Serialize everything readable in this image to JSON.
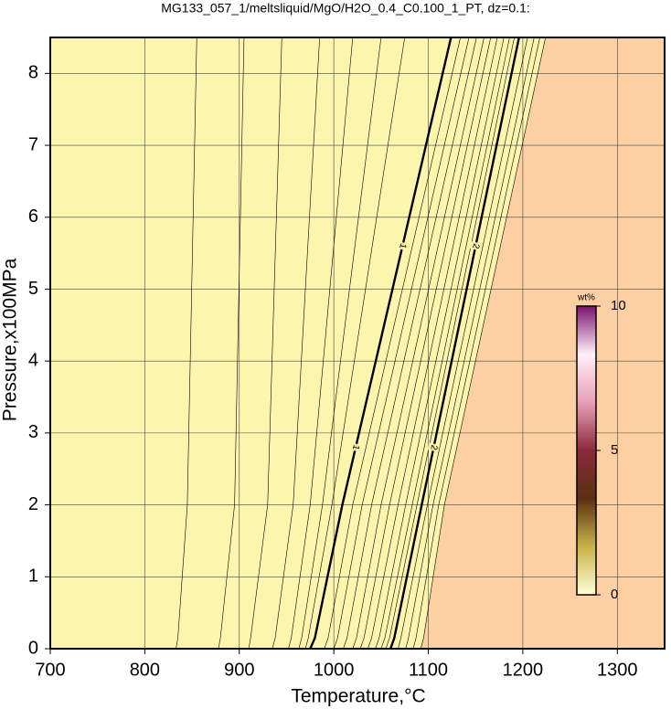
{
  "chart_data": {
    "type": "contour",
    "title": "MG133_057_1/meltsliquid/MgO/H2O_0.4_C0.100_1_PT, dz=0.1:",
    "x_label": "Temperature,°C",
    "y_label": "Pressure,x100MPa",
    "xlim": [
      700,
      1350
    ],
    "ylim": [
      0,
      8.5
    ],
    "xticks": [
      700,
      800,
      900,
      1000,
      1100,
      1200,
      1300
    ],
    "yticks": [
      0,
      1,
      2,
      3,
      4,
      5,
      6,
      7,
      8
    ],
    "grid": true,
    "low_color": "#fcf5ae",
    "high_color": "#fdd0a4",
    "contour_y": [
      0,
      0.15,
      2,
      8.5
    ],
    "contours": [
      {
        "level": 0.3,
        "x": [
          833,
          835,
          845,
          855
        ]
      },
      {
        "level": 0.4,
        "x": [
          878,
          880,
          895,
          905
        ]
      },
      {
        "level": 0.5,
        "x": [
          910,
          912,
          930,
          945
        ]
      },
      {
        "level": 0.6,
        "x": [
          935,
          938,
          957,
          985
        ]
      },
      {
        "level": 0.7,
        "x": [
          952,
          955,
          975,
          1020
        ]
      },
      {
        "level": 0.8,
        "x": [
          963,
          966,
          988,
          1050
        ]
      },
      {
        "level": 0.9,
        "x": [
          970,
          973,
          998,
          1075
        ]
      },
      {
        "level": 1,
        "x": [
          975,
          980,
          1009,
          1124
        ]
      },
      {
        "level": 1.1,
        "x": [
          990,
          994,
          1020,
          1134
        ]
      },
      {
        "level": 1.2,
        "x": [
          1000,
          1004,
          1030,
          1143
        ]
      },
      {
        "level": 1.3,
        "x": [
          1010,
          1014,
          1040,
          1151
        ]
      },
      {
        "level": 1.4,
        "x": [
          1020,
          1024,
          1050,
          1159
        ]
      },
      {
        "level": 1.5,
        "x": [
          1028,
          1032,
          1059,
          1166
        ]
      },
      {
        "level": 1.6,
        "x": [
          1036,
          1040,
          1068,
          1173
        ]
      },
      {
        "level": 1.7,
        "x": [
          1044,
          1048,
          1076,
          1180
        ]
      },
      {
        "level": 1.8,
        "x": [
          1050,
          1054,
          1083,
          1186
        ]
      },
      {
        "level": 1.9,
        "x": [
          1055,
          1059,
          1088,
          1191
        ]
      },
      {
        "level": 2,
        "x": [
          1060,
          1064,
          1093,
          1196
        ]
      },
      {
        "level": 2.1,
        "x": [
          1068,
          1071,
          1099,
          1205
        ]
      },
      {
        "level": 2.2,
        "x": [
          1076,
          1079,
          1105,
          1212
        ]
      },
      {
        "level": 2.3,
        "x": [
          1084,
          1087,
          1111,
          1218
        ]
      },
      {
        "level": 2.4,
        "x": [
          1092,
          1095,
          1117,
          1224
        ]
      }
    ],
    "colorbar": {
      "label": "wt%",
      "lim": [
        0,
        10
      ],
      "ticks": [
        0,
        5,
        10
      ],
      "colors": [
        "#fefed6",
        "#c8b24a",
        "#5a3010",
        "#8a2a3a",
        "#e8a0b8",
        "#fff0f8",
        "#7a1070"
      ]
    }
  }
}
